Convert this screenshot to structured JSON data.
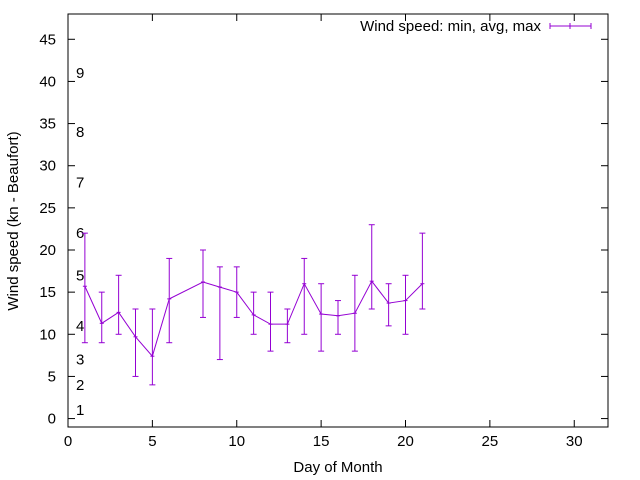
{
  "chart_data": {
    "type": "line",
    "title": "",
    "xlabel": "Day of Month",
    "ylabel": "Wind speed (kn - Beaufort)",
    "xlim": [
      0,
      32
    ],
    "ylim": [
      -1,
      48
    ],
    "xticks": [
      0,
      5,
      10,
      15,
      20,
      25,
      30
    ],
    "yticks": [
      0,
      5,
      10,
      15,
      20,
      25,
      30,
      35,
      40,
      45
    ],
    "grid": false,
    "legend_position": "top-right",
    "beaufort_labels": [
      {
        "label": "1",
        "y": 1
      },
      {
        "label": "2",
        "y": 4
      },
      {
        "label": "3",
        "y": 7
      },
      {
        "label": "4",
        "y": 11
      },
      {
        "label": "5",
        "y": 17
      },
      {
        "label": "6",
        "y": 22
      },
      {
        "label": "7",
        "y": 28
      },
      {
        "label": "8",
        "y": 34
      },
      {
        "label": "9",
        "y": 41
      }
    ],
    "series": [
      {
        "name": "Wind speed: min, avg, max",
        "color": "#9400d3",
        "points": [
          {
            "x": 1,
            "min": 9,
            "avg": 15.7,
            "max": 22
          },
          {
            "x": 2,
            "min": 9,
            "avg": 11.3,
            "max": 15
          },
          {
            "x": 3,
            "min": 10,
            "avg": 12.6,
            "max": 17
          },
          {
            "x": 4,
            "min": 5,
            "avg": 9.7,
            "max": 13
          },
          {
            "x": 5,
            "min": 4,
            "avg": 7.4,
            "max": 13
          },
          {
            "x": 6,
            "min": 9,
            "avg": 14.2,
            "max": 19
          },
          {
            "x": 8,
            "min": 12,
            "avg": 16.2,
            "max": 20
          },
          {
            "x": 9,
            "min": 7,
            "avg": 15.6,
            "max": 18
          },
          {
            "x": 10,
            "min": 12,
            "avg": 15.0,
            "max": 18
          },
          {
            "x": 11,
            "min": 10,
            "avg": 12.3,
            "max": 15
          },
          {
            "x": 12,
            "min": 8,
            "avg": 11.2,
            "max": 15
          },
          {
            "x": 13,
            "min": 9,
            "avg": 11.2,
            "max": 13
          },
          {
            "x": 14,
            "min": 10,
            "avg": 16.0,
            "max": 19
          },
          {
            "x": 15,
            "min": 8,
            "avg": 12.4,
            "max": 16
          },
          {
            "x": 16,
            "min": 10,
            "avg": 12.2,
            "max": 14
          },
          {
            "x": 17,
            "min": 8,
            "avg": 12.5,
            "max": 17
          },
          {
            "x": 18,
            "min": 13,
            "avg": 16.3,
            "max": 23
          },
          {
            "x": 19,
            "min": 11,
            "avg": 13.7,
            "max": 16
          },
          {
            "x": 20,
            "min": 10,
            "avg": 14.0,
            "max": 17
          },
          {
            "x": 21,
            "min": 13,
            "avg": 16.0,
            "max": 22
          }
        ]
      }
    ]
  }
}
